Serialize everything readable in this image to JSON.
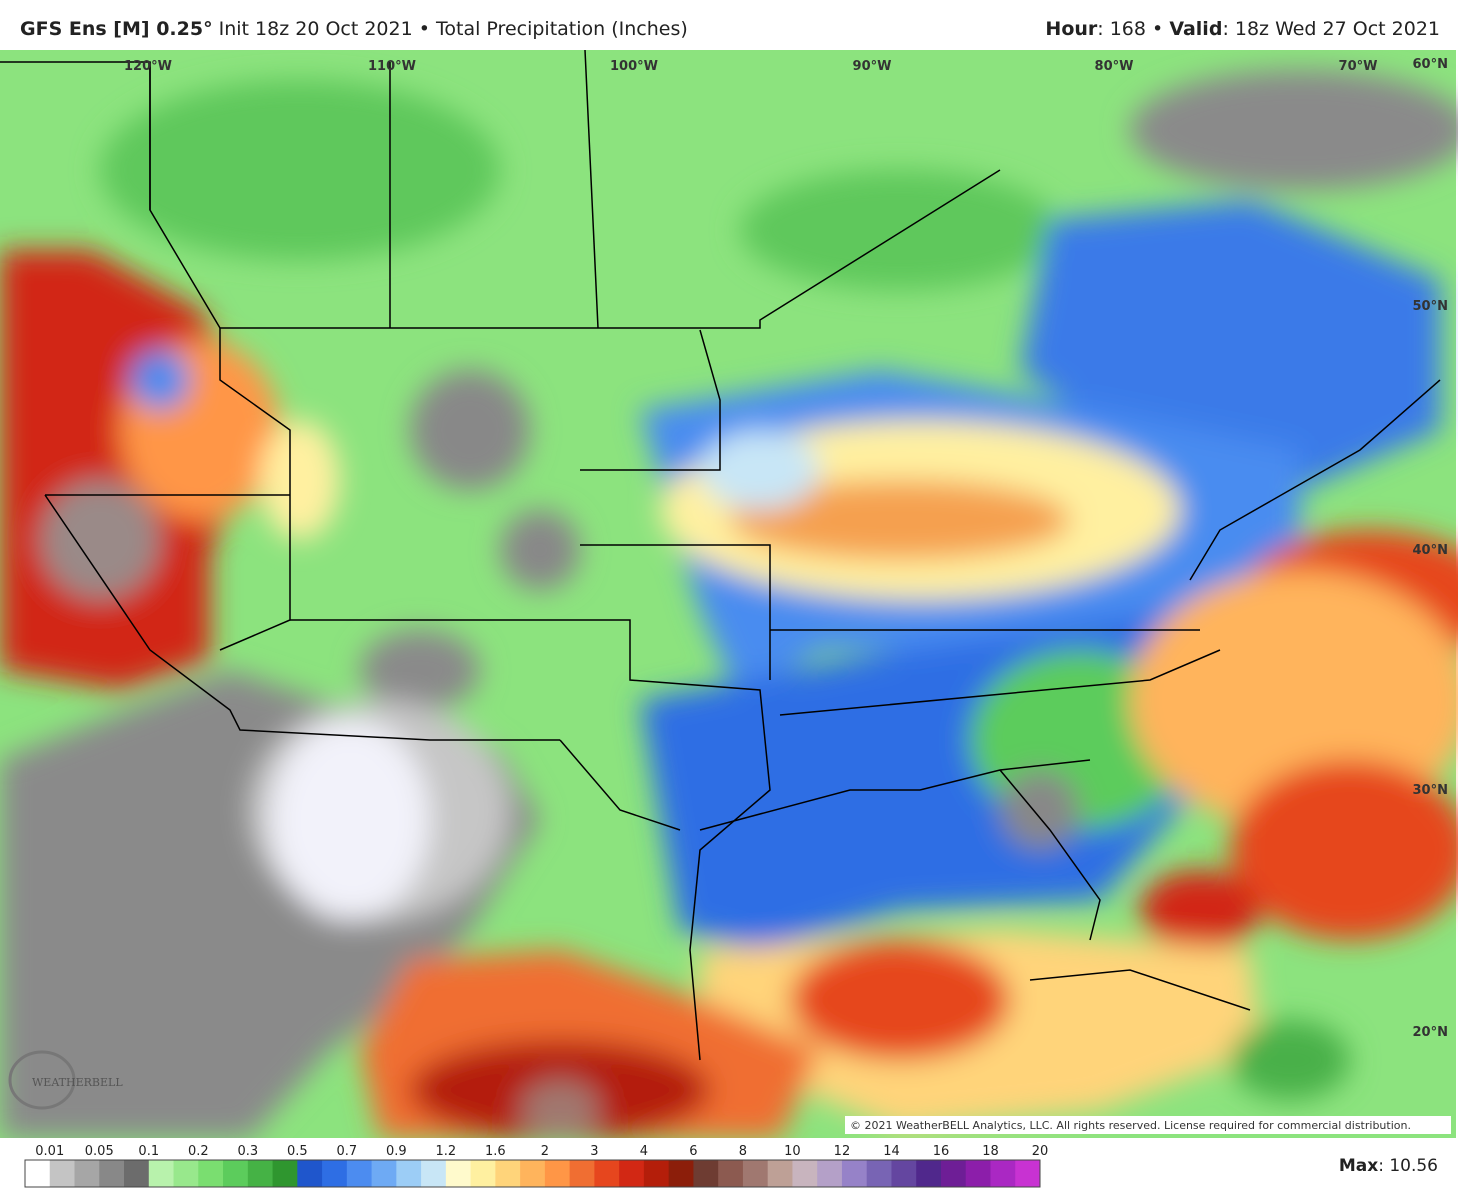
{
  "header": {
    "model": "GFS Ens [M] 0.25°",
    "init": "Init 18z 20 Oct 2021",
    "separator": "•",
    "field": "Total Precipitation (Inches)",
    "hour_label": "Hour",
    "hour_value": ": 168",
    "valid_label": "Valid",
    "valid_value": ": 18z Wed 27 Oct 2021"
  },
  "map": {
    "lon_labels": [
      "120°W",
      "110°W",
      "100°W",
      "90°W",
      "80°W",
      "70°W"
    ],
    "lat_labels": [
      "60°N",
      "50°N",
      "40°N",
      "30°N",
      "20°N"
    ],
    "logo": "WEATHERBELL",
    "copyright": "© 2021 WeatherBELL Analytics, LLC. All rights reserved. License required for commercial distribution."
  },
  "colorbar": {
    "ticks": [
      "0.01",
      "0.05",
      "0.1",
      "0.2",
      "0.3",
      "0.5",
      "0.7",
      "0.9",
      "1.2",
      "1.6",
      "2",
      "3",
      "4",
      "6",
      "8",
      "10",
      "12",
      "14",
      "16",
      "18",
      "20"
    ],
    "colors": [
      "#ffffff",
      "#c4c4c4",
      "#a6a6a6",
      "#888888",
      "#6c6c6c",
      "#b8f2ac",
      "#98e88c",
      "#7ade70",
      "#5ccc5c",
      "#45b245",
      "#2f962f",
      "#1f56cc",
      "#2e6ee4",
      "#4c8cf0",
      "#6eaaf4",
      "#9ccdf6",
      "#c8e6f6",
      "#fffacc",
      "#fff0a0",
      "#ffd47a",
      "#ffb45c",
      "#ff9646",
      "#f06e32",
      "#e6461e",
      "#d22814",
      "#b41e0a",
      "#8c1e0a",
      "#6e3c32",
      "#8c5a50",
      "#a07870",
      "#bea096",
      "#c8b4be",
      "#b4a0c8",
      "#9682c8",
      "#7864b4",
      "#6446a0",
      "#50288c",
      "#6e1e96",
      "#8c1eaa",
      "#aa28c3",
      "#c832d2"
    ],
    "max_label": "Max",
    "max_value": ": 10.56"
  }
}
